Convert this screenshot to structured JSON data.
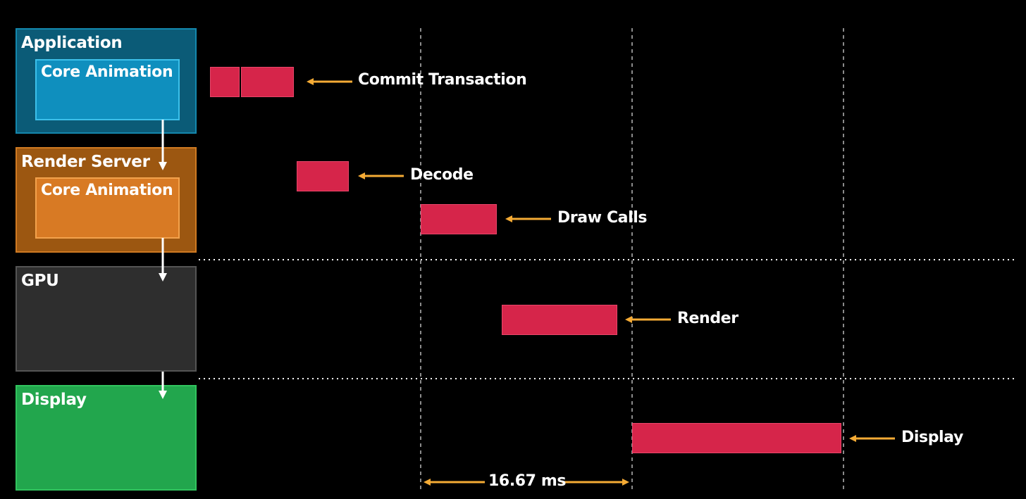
{
  "stages": {
    "application": {
      "title": "Application",
      "inner_title": "Core Animation",
      "color": "#0b5b77",
      "border": "#1487ad",
      "inner_color": "#0f8fbe",
      "inner_border": "#3cc0ea"
    },
    "render_server": {
      "title": "Render Server",
      "inner_title": "Core Animation",
      "color": "#9c5711",
      "border": "#cf7a22",
      "inner_color": "#d87a24",
      "inner_border": "#f3a24c"
    },
    "gpu": {
      "title": "GPU",
      "color": "#2e2e2e",
      "border": "#555555"
    },
    "display": {
      "title": "Display",
      "color": "#22a64d",
      "border": "#31c45e"
    }
  },
  "timeline": {
    "commit_transaction": "Commit Transaction",
    "decode": "Decode",
    "draw_calls": "Draw Calls",
    "render": "Render",
    "display": "Display",
    "frame_interval": "16.67 ms"
  },
  "colors": {
    "bar": "#d6254a",
    "arrow": "#f5ab35",
    "flow_arrow": "#ffffff",
    "guide": "#8a8a8a"
  }
}
